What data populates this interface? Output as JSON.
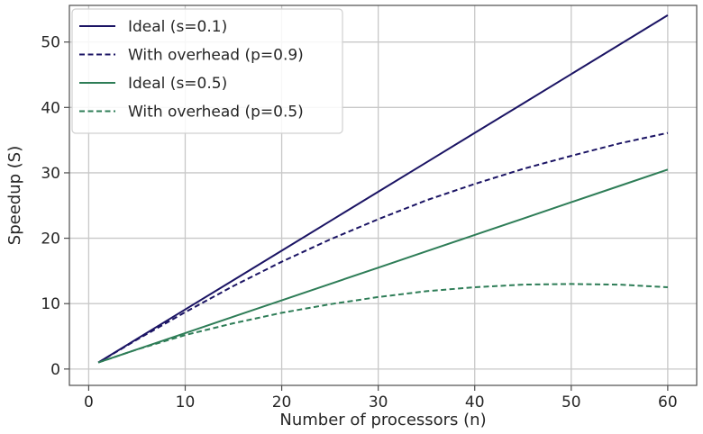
{
  "chart_data": {
    "type": "line",
    "title": "",
    "xlabel": "Number of processors (n)",
    "ylabel": "Speedup (S)",
    "xlim": [
      -2,
      63
    ],
    "ylim": [
      -2.5,
      55.6
    ],
    "xticks": [
      0,
      10,
      20,
      30,
      40,
      50,
      60
    ],
    "yticks": [
      0,
      10,
      20,
      30,
      40,
      50
    ],
    "grid": true,
    "legend_position": "top-left",
    "series": [
      {
        "name": "Ideal (s=0.1)",
        "color": "#1b1464",
        "style": "solid",
        "x": [
          1,
          5,
          10,
          15,
          20,
          25,
          30,
          35,
          40,
          45,
          50,
          55,
          60
        ],
        "y": [
          1.0,
          4.6,
          9.1,
          13.6,
          18.1,
          22.6,
          27.1,
          31.6,
          36.1,
          40.6,
          45.1,
          49.6,
          54.1
        ]
      },
      {
        "name": "With overhead (p=0.9)",
        "color": "#1b1464",
        "style": "dashed",
        "x": [
          1,
          5,
          10,
          15,
          20,
          25,
          30,
          35,
          40,
          45,
          50,
          55,
          60
        ],
        "y": [
          1.0,
          4.5,
          8.7,
          12.7,
          16.4,
          19.8,
          22.9,
          25.8,
          28.3,
          30.6,
          32.6,
          34.5,
          36.1
        ]
      },
      {
        "name": "Ideal (s=0.5)",
        "color": "#2e7d57",
        "style": "solid",
        "x": [
          1,
          5,
          10,
          15,
          20,
          25,
          30,
          35,
          40,
          45,
          50,
          55,
          60
        ],
        "y": [
          1.0,
          3.0,
          5.5,
          8.0,
          10.5,
          13.0,
          15.5,
          18.0,
          20.5,
          23.0,
          25.5,
          28.0,
          30.5
        ]
      },
      {
        "name": "With overhead (p=0.5)",
        "color": "#2e7d57",
        "style": "dashed",
        "x": [
          1,
          5,
          10,
          15,
          20,
          25,
          30,
          35,
          40,
          45,
          50,
          55,
          60
        ],
        "y": [
          1.0,
          3.0,
          5.2,
          7.0,
          8.6,
          9.9,
          11.0,
          11.9,
          12.5,
          12.9,
          13.0,
          12.9,
          12.5
        ]
      }
    ]
  }
}
